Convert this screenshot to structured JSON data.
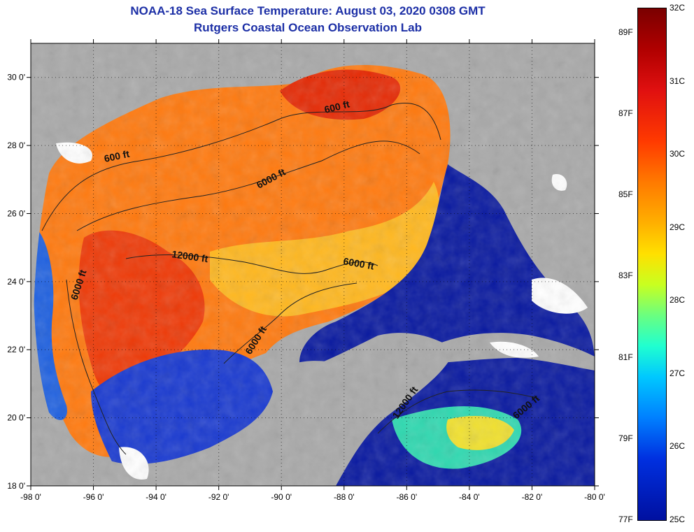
{
  "title": {
    "line1": "NOAA-18 Sea Surface Temperature:  August 03, 2020 0308 GMT",
    "line2": "Rutgers Coastal Ocean Observation Lab"
  },
  "map": {
    "lon_ticks": [
      "-98 0'",
      "-96 0'",
      "-94 0'",
      "-92 0'",
      "-90 0'",
      "-88 0'",
      "-86 0'",
      "-84 0'",
      "-82 0'",
      "-80 0'"
    ],
    "lat_ticks": [
      "30 0'",
      "28 0'",
      "26 0'",
      "24 0'",
      "22 0'",
      "20 0'",
      "18 0'"
    ],
    "lon_range": [
      -98,
      -80
    ],
    "lat_range": [
      18,
      31
    ],
    "contour_labels": [
      "600 ft",
      "600 ft",
      "6000 ft",
      "6000 ft",
      "12000 ft",
      "6000 ft",
      "6000 ft",
      "12000 ft",
      "6000 ft"
    ]
  },
  "colorbar": {
    "celsius": [
      "32C",
      "31C",
      "30C",
      "29C",
      "28C",
      "27C",
      "26C",
      "25C"
    ],
    "fahrenheit": [
      "89F",
      "87F",
      "85F",
      "83F",
      "81F",
      "79F",
      "77F"
    ],
    "colors": {
      "land": "#a9a9a9",
      "warm": "#ff6a00",
      "hot": "#e32400",
      "cool": "#0a1aa0",
      "mid": "#ffb400"
    }
  }
}
